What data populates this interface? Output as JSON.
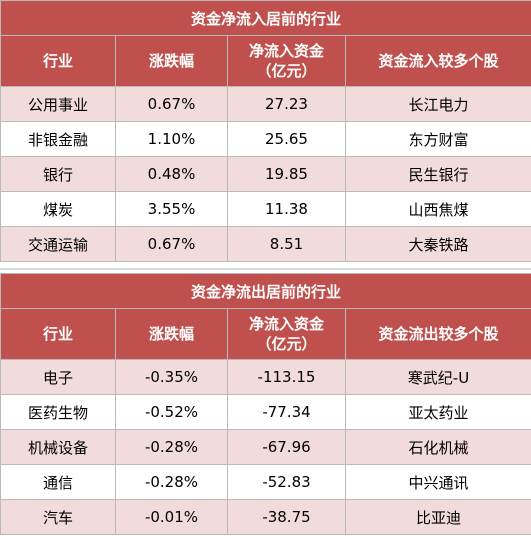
{
  "inflow": {
    "title": "资金净流入居前的行业",
    "headers": [
      "行业",
      "涨跌幅",
      "净流入资金\n（亿元）",
      "资金流入较多个股"
    ],
    "rows": [
      {
        "industry": "公用事业",
        "change": "0.67%",
        "net": "27.23",
        "stock": "长江电力"
      },
      {
        "industry": "非银金融",
        "change": "1.10%",
        "net": "25.65",
        "stock": "东方财富"
      },
      {
        "industry": "银行",
        "change": "0.48%",
        "net": "19.85",
        "stock": "民生银行"
      },
      {
        "industry": "煤炭",
        "change": "3.55%",
        "net": "11.38",
        "stock": "山西焦煤"
      },
      {
        "industry": "交通运输",
        "change": "0.67%",
        "net": "8.51",
        "stock": "大秦铁路"
      }
    ]
  },
  "outflow": {
    "title": "资金净流出居前的行业",
    "headers": [
      "行业",
      "涨跌幅",
      "净流入资金\n（亿元）",
      "资金流出较多个股"
    ],
    "rows": [
      {
        "industry": "电子",
        "change": "-0.35%",
        "net": "-113.15",
        "stock": "寒武纪-U"
      },
      {
        "industry": "医药生物",
        "change": "-0.52%",
        "net": "-77.34",
        "stock": "亚太药业"
      },
      {
        "industry": "机械设备",
        "change": "-0.28%",
        "net": "-67.96",
        "stock": "石化机械"
      },
      {
        "industry": "通信",
        "change": "-0.28%",
        "net": "-52.83",
        "stock": "中兴通讯"
      },
      {
        "industry": "汽车",
        "change": "-0.01%",
        "net": "-38.75",
        "stock": "比亚迪"
      }
    ]
  },
  "colors": {
    "header_bg": "#c0504d",
    "row_tint": "#f2dcdb",
    "header_text": "#ffffff"
  }
}
